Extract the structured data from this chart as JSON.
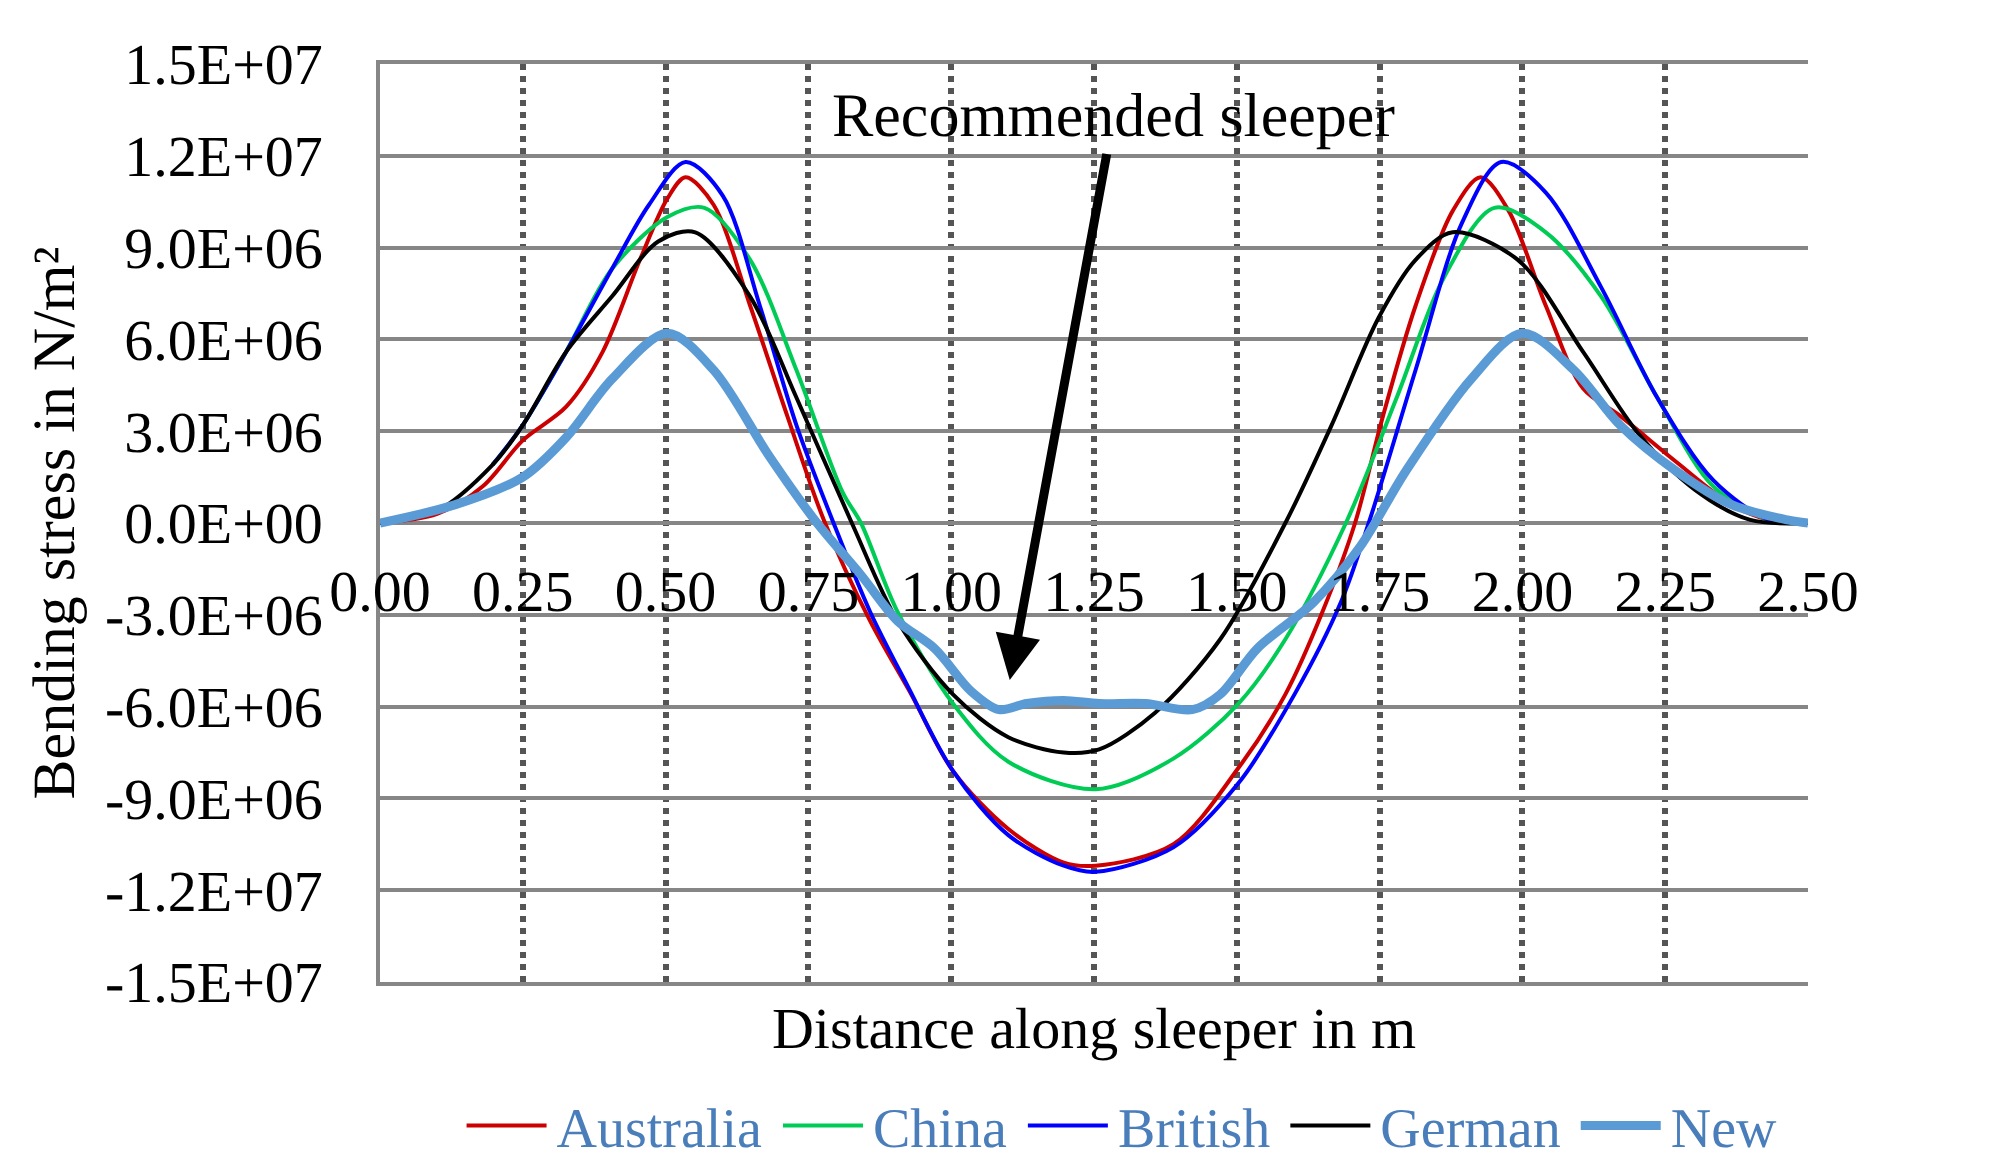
{
  "chart_data": {
    "type": "line",
    "xlabel": "Distance along sleeper in m",
    "ylabel": "Bending stress in N/m²",
    "xlim": [
      0,
      2.5
    ],
    "ylim": [
      -15000000,
      15000000
    ],
    "xticks": [
      {
        "value": 0,
        "label": "0.00"
      },
      {
        "value": 0.25,
        "label": "0.25"
      },
      {
        "value": 0.5,
        "label": "0.50"
      },
      {
        "value": 0.75,
        "label": "0.75"
      },
      {
        "value": 1,
        "label": "1.00"
      },
      {
        "value": 1.25,
        "label": "1.25"
      },
      {
        "value": 1.5,
        "label": "1.50"
      },
      {
        "value": 1.75,
        "label": "1.75"
      },
      {
        "value": 2,
        "label": "2.00"
      },
      {
        "value": 2.25,
        "label": "2.25"
      },
      {
        "value": 2.5,
        "label": "2.50"
      }
    ],
    "yticks": [
      {
        "value": -15000000,
        "label": "-1.5E+07"
      },
      {
        "value": -12000000,
        "label": "-1.2E+07"
      },
      {
        "value": -9000000,
        "label": "-9.0E+06"
      },
      {
        "value": -6000000,
        "label": "-6.0E+06"
      },
      {
        "value": -3000000,
        "label": "-3.0E+06"
      },
      {
        "value": 0,
        "label": "0.0E+00"
      },
      {
        "value": 3000000,
        "label": "3.0E+06"
      },
      {
        "value": 6000000,
        "label": "6.0E+06"
      },
      {
        "value": 9000000,
        "label": "9.0E+06"
      },
      {
        "value": 12000000,
        "label": "1.2E+07"
      },
      {
        "value": 15000000,
        "label": "1.5E+07"
      }
    ],
    "grid": true,
    "legend": "bottom",
    "marker": "none",
    "line_style": "solid",
    "annotations": [
      "Recommended sleeper"
    ],
    "series": [
      {
        "name": "Australia",
        "color": "#cc0000",
        "x": [
          0,
          0.1,
          0.18,
          0.25,
          0.326,
          0.39,
          0.455,
          0.503,
          0.535,
          0.584,
          0.648,
          0.713,
          0.777,
          0.858,
          0.93,
          1.003,
          1.1,
          1.197,
          1.253,
          1.389,
          1.503,
          1.585,
          1.65,
          1.707,
          1.756,
          1.813,
          1.878,
          1.927,
          1.976,
          2.041,
          2.106,
          2.171,
          2.269,
          2.366,
          2.432,
          2.5
        ],
        "values": [
          0,
          300000,
          1200000,
          2700000,
          3800000,
          5600000,
          8600000,
          10600000,
          11300000,
          10400000,
          7100000,
          3500000,
          100000,
          -3200000,
          -5600000,
          -8100000,
          -10000000,
          -11100000,
          -11200000,
          -10500000,
          -8000000,
          -5600000,
          -2900000,
          0,
          3500000,
          7100000,
          10200000,
          11300000,
          10200000,
          7100000,
          4400000,
          3500000,
          2000000,
          600000,
          100000,
          0
        ]
      },
      {
        "name": "China",
        "color": "#00cc55",
        "x": [
          0.197,
          0.25,
          0.326,
          0.406,
          0.503,
          0.568,
          0.648,
          0.729,
          0.81,
          0.842,
          0.906,
          1.003,
          1.1,
          1.253,
          1.389,
          1.503,
          1.585,
          1.691,
          1.78,
          1.862,
          1.951,
          2.041,
          2.138,
          2.236,
          2.334,
          2.432,
          2.5
        ],
        "values": [
          1900000,
          3200000,
          5600000,
          8300000,
          10000000,
          10300000,
          8600000,
          5000000,
          1000000,
          0,
          -2900000,
          -5900000,
          -7800000,
          -8700000,
          -7700000,
          -5900000,
          -3800000,
          0,
          4100000,
          8000000,
          10300000,
          9500000,
          7400000,
          4100000,
          1200000,
          100000,
          0
        ]
      },
      {
        "name": "British",
        "color": "#0000ff",
        "x": [
          0.197,
          0.25,
          0.326,
          0.406,
          0.471,
          0.535,
          0.6,
          0.665,
          0.729,
          0.794,
          0.858,
          0.923,
          1.003,
          1.1,
          1.197,
          1.253,
          1.389,
          1.503,
          1.601,
          1.682,
          1.731,
          1.813,
          1.894,
          1.963,
          2.041,
          2.138,
          2.236,
          2.334,
          2.432,
          2.5
        ],
        "values": [
          1900000,
          3200000,
          5600000,
          8300000,
          10400000,
          11800000,
          10700000,
          7100000,
          3200000,
          0,
          -2900000,
          -5300000,
          -8100000,
          -10200000,
          -11200000,
          -11400000,
          -10600000,
          -8500000,
          -5600000,
          -2600000,
          0,
          5000000,
          9800000,
          11800000,
          10800000,
          7700000,
          4100000,
          1400000,
          100000,
          0
        ]
      },
      {
        "name": "German",
        "color": "#000000",
        "x": [
          0,
          0.1,
          0.197,
          0.25,
          0.326,
          0.406,
          0.487,
          0.552,
          0.648,
          0.729,
          0.826,
          0.906,
          1.003,
          1.1,
          1.197,
          1.259,
          1.357,
          1.471,
          1.585,
          1.666,
          1.748,
          1.813,
          1.878,
          1.992,
          2.106,
          2.204,
          2.301,
          2.399,
          2.5
        ],
        "values": [
          0,
          400000,
          1900000,
          3200000,
          5600000,
          7400000,
          9200000,
          9500000,
          7400000,
          4100000,
          0,
          -3200000,
          -5600000,
          -7000000,
          -7500000,
          -7400000,
          -6200000,
          -3800000,
          0,
          3200000,
          6700000,
          8600000,
          9500000,
          8600000,
          5600000,
          2900000,
          1100000,
          100000,
          0
        ]
      },
      {
        "name": "New",
        "color": "#5b9bd5",
        "x": [
          0,
          0.132,
          0.25,
          0.326,
          0.406,
          0.503,
          0.584,
          0.681,
          0.761,
          0.842,
          0.906,
          0.971,
          1.035,
          1.084,
          1.132,
          1.197,
          1.259,
          1.34,
          1.422,
          1.471,
          1.536,
          1.634,
          1.715,
          1.796,
          1.91,
          2.0,
          2.09,
          2.171,
          2.269,
          2.366,
          2.464,
          2.5
        ],
        "values": [
          0,
          600000,
          1500000,
          2800000,
          4700000,
          6200000,
          5000000,
          2200000,
          100000,
          -1700000,
          -3200000,
          -4100000,
          -5500000,
          -6100000,
          -5900000,
          -5800000,
          -5900000,
          -5900000,
          -6100000,
          -5600000,
          -4100000,
          -2600000,
          -800000,
          1700000,
          4700000,
          6200000,
          5000000,
          3200000,
          1700000,
          600000,
          100000,
          0
        ]
      }
    ]
  }
}
